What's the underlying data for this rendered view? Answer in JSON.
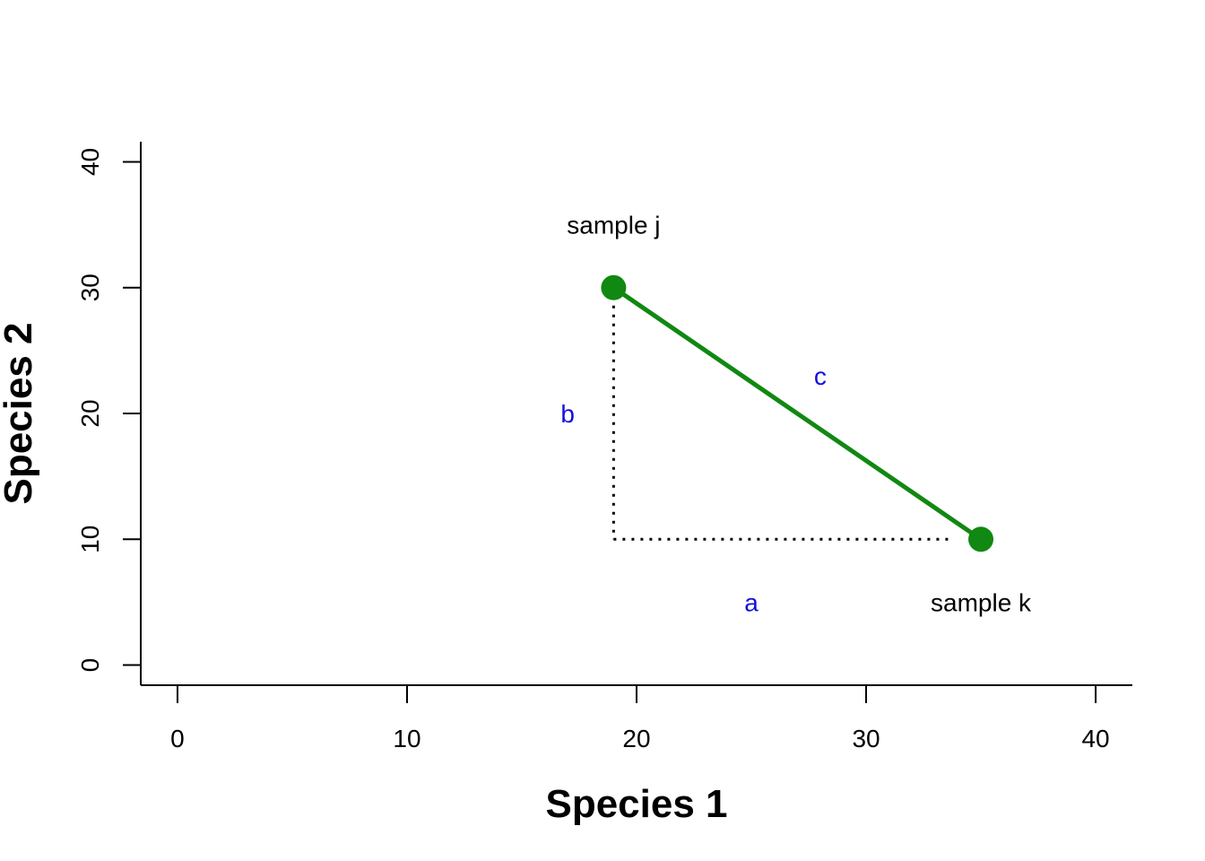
{
  "chart_data": {
    "type": "scatter",
    "xlabel": "Species 1",
    "ylabel": "Species 2",
    "xlim": [
      -1.6,
      41.6
    ],
    "ylim": [
      -1.6,
      41.6
    ],
    "xticks": [
      "0",
      "10",
      "20",
      "30",
      "40"
    ],
    "yticks": [
      "0",
      "10",
      "20",
      "30",
      "40"
    ],
    "grid": false,
    "points": [
      {
        "label": "sample j",
        "x": 19,
        "y": 30
      },
      {
        "label": "sample k",
        "x": 35,
        "y": 10
      }
    ],
    "segment_labels": [
      {
        "label": "a",
        "x": 25,
        "y": 5
      },
      {
        "label": "b",
        "x": 17,
        "y": 20
      },
      {
        "label": "c",
        "x": 28,
        "y": 23
      }
    ],
    "colors": {
      "points": "#118811",
      "line": "#118811",
      "segment_labels": "#1111dd",
      "dotted": "#000000"
    }
  }
}
